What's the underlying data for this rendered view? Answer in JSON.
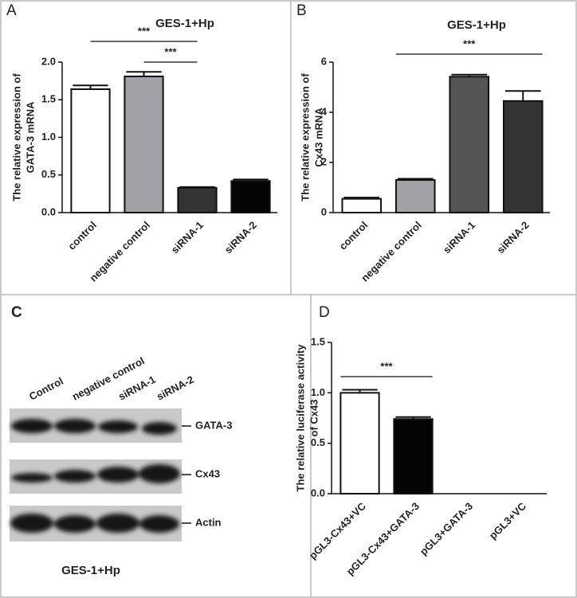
{
  "chart_data": [
    {
      "type": "bar",
      "panel": "A",
      "title": "GES-1+Hp",
      "ylabel": [
        "The relative expression of",
        "GATA-3 mRNA"
      ],
      "categories": [
        "control",
        "negative control",
        "siRNA-1",
        "siRNA-2"
      ],
      "values": [
        1.64,
        1.81,
        0.33,
        0.42
      ],
      "errors": [
        0.05,
        0.06,
        0.01,
        0.02
      ],
      "colors": [
        "#ffffff",
        "#a0a2a6",
        "#333333",
        "#050505"
      ],
      "ylim": [
        0,
        2
      ],
      "yticks": [
        {
          "value": 0,
          "label": "0.0"
        },
        0.5,
        {
          "value": 1,
          "label": "1.0"
        },
        1.5,
        {
          "value": 2,
          "label": "2.0"
        }
      ],
      "annotations": [
        {
          "text": "***",
          "between": [
            "control",
            "siRNA-1"
          ]
        },
        {
          "text": "***",
          "between": [
            "negative control",
            "siRNA-1"
          ]
        }
      ]
    },
    {
      "type": "bar",
      "panel": "B",
      "title": "GES-1+Hp",
      "ylabel": [
        "The relative expression of",
        "Cx43 mRNA"
      ],
      "categories": [
        "control",
        "negative control",
        "siRNA-1",
        "siRNA-2"
      ],
      "values": [
        0.55,
        1.3,
        5.42,
        4.45
      ],
      "errors": [
        0.05,
        0.05,
        0.08,
        0.4
      ],
      "colors": [
        "#ffffff",
        "#a0a2a6",
        "#555555",
        "#333333"
      ],
      "ylim": [
        0,
        6
      ],
      "yticks": [
        0,
        2,
        4,
        6
      ],
      "annotations": [
        {
          "text": "***",
          "between": [
            "negative control",
            "siRNA-2"
          ]
        }
      ]
    },
    {
      "type": "bar",
      "panel": "D",
      "ylabel": [
        "The relative luciferase activity",
        "of Cx43"
      ],
      "categories": [
        "pGL3-Cx43+VC",
        "pGL3-Cx43+GATA-3",
        "pGL3+GATA-3",
        "pGL3+VC"
      ],
      "values": [
        1.0,
        0.74,
        0,
        0
      ],
      "errors": [
        0.03,
        0.02,
        0,
        0
      ],
      "colors": [
        "#ffffff",
        "#050505",
        "#050505",
        "#050505"
      ],
      "ylim": [
        0,
        1.5
      ],
      "yticks": [
        {
          "value": 0,
          "label": "0.0"
        },
        0.5,
        {
          "value": 1,
          "label": "1.0"
        },
        1.5
      ],
      "annotations": [
        {
          "text": "***",
          "between": [
            "pGL3-Cx43+VC",
            "pGL3-Cx43+GATA-3"
          ]
        }
      ]
    }
  ],
  "blot": {
    "panel": "C",
    "lanes": [
      "Control",
      "negative control",
      "siRNA-1",
      "siRNA-2"
    ],
    "bands": [
      "GATA-3",
      "Cx43",
      "Actin"
    ],
    "caption": "GES-1+Hp"
  }
}
